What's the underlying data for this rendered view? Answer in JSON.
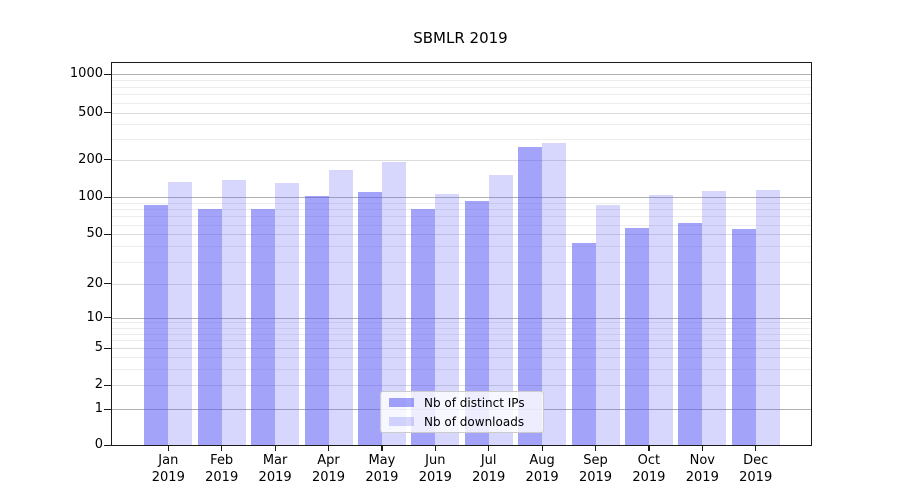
{
  "page": {
    "background": "#ffffff"
  },
  "chart_data": {
    "type": "bar",
    "title": "SBMLR 2019",
    "categories": [
      "Jan",
      "Feb",
      "Mar",
      "Apr",
      "May",
      "Jun",
      "Jul",
      "Aug",
      "Sep",
      "Oct",
      "Nov",
      "Dec"
    ],
    "category_year": "2019",
    "series": [
      {
        "name": "Nb of distinct IPs",
        "color": "rgba(87,87,245,0.55)",
        "values": [
          86,
          80,
          80,
          103,
          110,
          80,
          93,
          255,
          43,
          56,
          62,
          55
        ]
      },
      {
        "name": "Nb of downloads",
        "color": "rgba(87,87,245,0.24)",
        "values": [
          134,
          138,
          131,
          167,
          193,
          107,
          151,
          280,
          87,
          104,
          112,
          114
        ]
      }
    ],
    "yaxis": {
      "scale": "symlog",
      "ticks": [
        0,
        1,
        2,
        5,
        10,
        20,
        50,
        100,
        200,
        500,
        1000
      ],
      "minor_ticks": [
        3,
        4,
        6,
        7,
        8,
        9,
        30,
        40,
        60,
        70,
        80,
        90,
        300,
        400,
        600,
        700,
        800,
        900
      ],
      "ylim": [
        0,
        1000
      ]
    },
    "legend": {
      "position": "bottom-center"
    },
    "grid": true
  },
  "colors": {
    "bar_distinct_ips": "rgba(87,87,245,0.55)",
    "bar_downloads": "rgba(87,87,245,0.24)",
    "grid_decade": "#b0b0b0",
    "grid_labeled": "#dcdcdc",
    "grid_minor": "#ececec",
    "frame": "#1a1a1a"
  }
}
